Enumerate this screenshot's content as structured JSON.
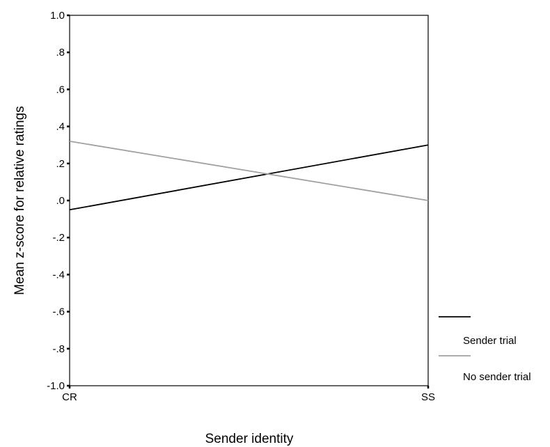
{
  "chart_data": {
    "type": "line",
    "title": "",
    "xlabel": "Sender identity",
    "ylabel": "Mean z-score for relative ratings",
    "categories": [
      "CR",
      "SS"
    ],
    "ylim": [
      -1.0,
      1.0
    ],
    "yticks": [
      {
        "value": 1.0,
        "label": "1.0"
      },
      {
        "value": 0.8,
        "label": ".8"
      },
      {
        "value": 0.6,
        "label": ".6"
      },
      {
        "value": 0.4,
        "label": ".4"
      },
      {
        "value": 0.2,
        "label": ".2"
      },
      {
        "value": 0.0,
        "label": ".0"
      },
      {
        "value": -0.2,
        "label": "-.2"
      },
      {
        "value": -0.4,
        "label": "-.4"
      },
      {
        "value": -0.6,
        "label": "-.6"
      },
      {
        "value": -0.8,
        "label": "-.8"
      },
      {
        "value": -1.0,
        "label": "-1.0"
      }
    ],
    "grid": false,
    "legend_position": "right",
    "series": [
      {
        "name": "Sender trial",
        "values": [
          -0.05,
          0.3
        ],
        "color": "#000000"
      },
      {
        "name": "No sender trial",
        "values": [
          0.32,
          0.0
        ],
        "color": "#a0a0a0"
      }
    ]
  }
}
